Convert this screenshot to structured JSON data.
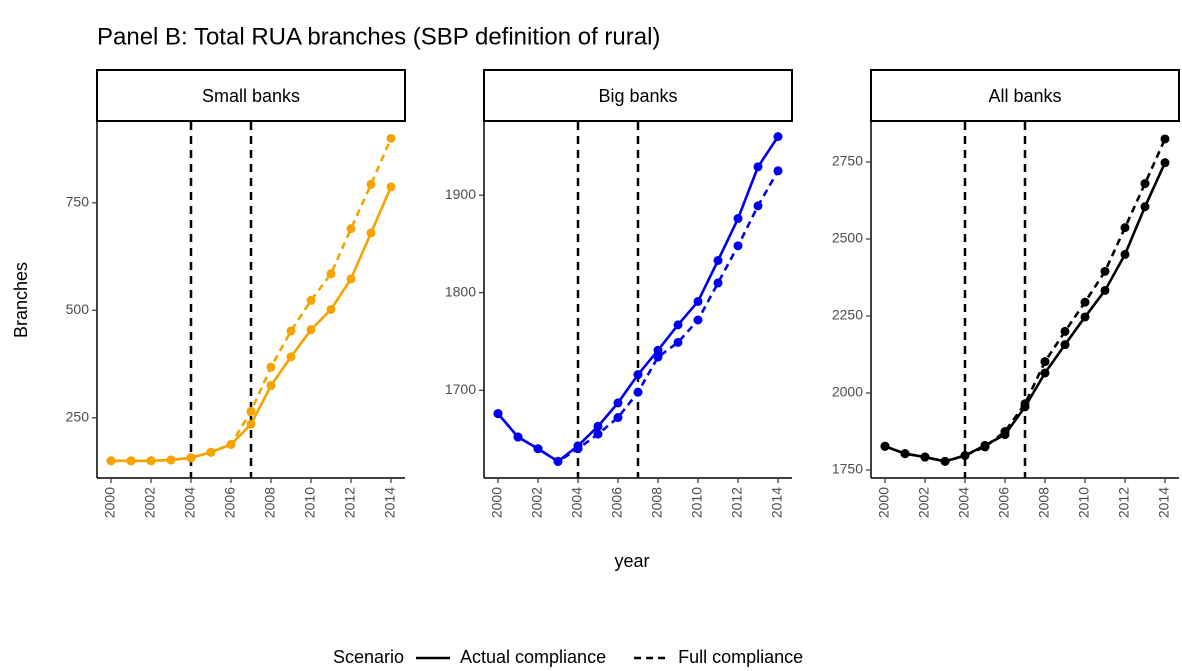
{
  "title": "Panel B: Total RUA branches (SBP definition of rural)",
  "y_label": "Branches",
  "x_label": "year",
  "legend_title": "Scenario",
  "chart_data": [
    {
      "type": "line",
      "title": "Small banks",
      "x": [
        2000,
        2001,
        2002,
        2003,
        2004,
        2005,
        2006,
        2007,
        2008,
        2009,
        2010,
        2011,
        2012,
        2013,
        2014
      ],
      "xlim": [
        1999.3,
        2014.7
      ],
      "xticks": [
        2000,
        2002,
        2004,
        2006,
        2008,
        2010,
        2012,
        2014
      ],
      "ylim": [
        110,
        938
      ],
      "yticks": [
        250,
        500,
        750
      ],
      "vlines": [
        2004,
        2007
      ],
      "series": [
        {
          "name": "Actual compliance",
          "color": "#f5a300",
          "linestyle": "solid",
          "values": [
            150,
            150,
            150,
            152,
            157,
            170,
            188,
            235,
            325,
            392,
            455,
            502,
            573,
            680,
            787
          ]
        },
        {
          "name": "Full compliance",
          "color": "#f5a300",
          "linestyle": "dashed",
          "values": [
            150,
            150,
            150,
            152,
            157,
            170,
            188,
            265,
            368,
            452,
            523,
            585,
            690,
            793,
            900
          ]
        }
      ]
    },
    {
      "type": "line",
      "title": "Big banks",
      "x": [
        2000,
        2001,
        2002,
        2003,
        2004,
        2005,
        2006,
        2007,
        2008,
        2009,
        2010,
        2011,
        2012,
        2013,
        2014
      ],
      "xlim": [
        1999.3,
        2014.7
      ],
      "xticks": [
        2000,
        2002,
        2004,
        2006,
        2008,
        2010,
        2012,
        2014
      ],
      "ylim": [
        1610,
        1975
      ],
      "yticks": [
        1700,
        1800,
        1900
      ],
      "vlines": [
        2004,
        2007
      ],
      "series": [
        {
          "name": "Actual compliance",
          "color": "#0000ee",
          "linestyle": "solid",
          "values": [
            1676,
            1652,
            1640,
            1627,
            1643,
            1663,
            1687,
            1716,
            1741,
            1767,
            1791,
            1833,
            1876,
            1929,
            1960
          ]
        },
        {
          "name": "Full compliance",
          "color": "#0000ee",
          "linestyle": "dashed",
          "values": [
            1676,
            1652,
            1640,
            1627,
            1640,
            1655,
            1672,
            1698,
            1734,
            1749,
            1772,
            1810,
            1848,
            1889,
            1925
          ]
        }
      ]
    },
    {
      "type": "line",
      "title": "All banks",
      "x": [
        2000,
        2001,
        2002,
        2003,
        2004,
        2005,
        2006,
        2007,
        2008,
        2009,
        2010,
        2011,
        2012,
        2013,
        2014
      ],
      "xlim": [
        1999.3,
        2014.7
      ],
      "xticks": [
        2000,
        2002,
        2004,
        2006,
        2008,
        2010,
        2012,
        2014
      ],
      "ylim": [
        1724,
        2880
      ],
      "yticks": [
        1750,
        2000,
        2250,
        2500,
        2750
      ],
      "vlines": [
        2004,
        2007
      ],
      "series": [
        {
          "name": "Actual compliance",
          "color": "#000000",
          "linestyle": "solid",
          "values": [
            1827,
            1803,
            1792,
            1778,
            1797,
            1830,
            1865,
            1955,
            2065,
            2157,
            2247,
            2333,
            2450,
            2605,
            2748
          ]
        },
        {
          "name": "Full compliance",
          "color": "#000000",
          "linestyle": "dashed",
          "values": [
            1827,
            1803,
            1792,
            1778,
            1797,
            1825,
            1875,
            1965,
            2102,
            2200,
            2295,
            2395,
            2537,
            2680,
            2825
          ]
        }
      ]
    }
  ]
}
